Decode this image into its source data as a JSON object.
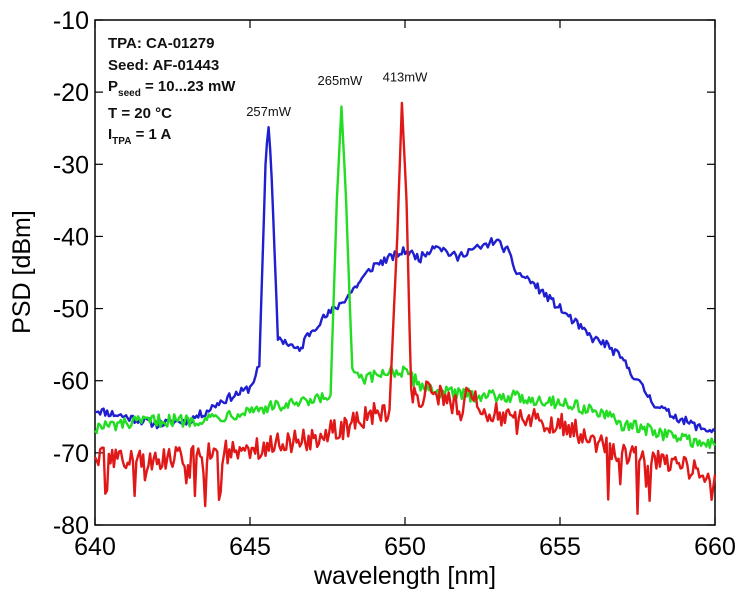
{
  "chart_data": {
    "type": "line",
    "xlabel": "wavelength [nm]",
    "ylabel": "PSD [dBm]",
    "xlim": [
      640,
      660
    ],
    "ylim": [
      -80,
      -10
    ],
    "xticks": [
      "640",
      "645",
      "650",
      "655",
      "660"
    ],
    "yticks": [
      "-10",
      "-20",
      "-30",
      "-40",
      "-50",
      "-60",
      "-70",
      "-80"
    ],
    "grid": false,
    "annotations": {
      "line1": "TPA: CA-01279",
      "line2": "Seed: AF-01443",
      "line3_main": "P",
      "line3_sub": "seed",
      "line3_rest": " = 10...23 mW",
      "line4": "T = 20 °C",
      "line5_main": "I",
      "line5_sub": "TPA",
      "line5_rest": " = 1 A"
    },
    "series": [
      {
        "color": "#1f1fd0",
        "peak_label": "257mW",
        "label_at": [
          645.6,
          -23.3
        ],
        "x": [
          640,
          641,
          642,
          643,
          643.5,
          644,
          644.5,
          645,
          645.3,
          645.5,
          645.6,
          645.7,
          645.9,
          646.3,
          646.6,
          646.8,
          647.2,
          648,
          648.5,
          649,
          649.5,
          650,
          650.5,
          651,
          651.3,
          651.7,
          652,
          652.5,
          652.9,
          653.3,
          653.6,
          654,
          654.5,
          655,
          655.5,
          656,
          656.5,
          657,
          657.5,
          658,
          658.5,
          659,
          659.5,
          660
        ],
        "y": [
          -64,
          -65,
          -66,
          -65.5,
          -64.5,
          -63,
          -62,
          -61,
          -58,
          -30,
          -25,
          -32,
          -54,
          -55,
          -56,
          -54,
          -52,
          -49,
          -46.5,
          -44,
          -43,
          -42,
          -43,
          -41,
          -42,
          -43,
          -42,
          -41.5,
          -40.5,
          -42,
          -45,
          -46,
          -48,
          -50,
          -52,
          -54,
          -55,
          -57,
          -60,
          -63,
          -64.5,
          -65.5,
          -66.5,
          -67
        ]
      },
      {
        "color": "#22dd22",
        "peak_label": "265mW",
        "label_at": [
          647.9,
          -19
        ],
        "x": [
          640,
          641,
          642,
          643,
          644,
          645,
          646,
          647,
          647.6,
          647.8,
          647.95,
          648.1,
          648.3,
          648.7,
          649,
          649.5,
          650,
          650.5,
          651,
          652,
          653,
          654,
          655,
          656,
          657,
          658,
          659,
          660
        ],
        "y": [
          -66.5,
          -66,
          -65.5,
          -65.5,
          -65,
          -64,
          -63.5,
          -63,
          -62,
          -35,
          -22,
          -35,
          -59,
          -60,
          -59.5,
          -58.5,
          -59,
          -60.5,
          -61.5,
          -62,
          -62,
          -62.5,
          -63,
          -64,
          -66,
          -67,
          -68,
          -69
        ]
      },
      {
        "color": "#e01818",
        "peak_label": "413mW",
        "label_at": [
          650,
          -18.5
        ],
        "x": [
          640,
          641,
          642,
          643,
          644,
          645,
          646,
          647,
          648,
          648.5,
          649,
          649.5,
          649.75,
          649.9,
          650.05,
          650.2,
          650.4,
          650.8,
          651.3,
          651.8,
          652.1,
          652.5,
          653,
          653.5,
          654,
          654.5,
          655,
          656,
          657,
          658,
          659,
          660
        ],
        "y": [
          -70,
          -71,
          -71,
          -70.5,
          -70,
          -69.5,
          -68.5,
          -68,
          -66.5,
          -65.5,
          -64.5,
          -64,
          -40,
          -21.5,
          -35,
          -62,
          -63,
          -61,
          -62.5,
          -64,
          -61.5,
          -64,
          -64.5,
          -66,
          -65,
          -65.5,
          -66,
          -68,
          -70,
          -70.5,
          -72,
          -73
        ]
      }
    ]
  }
}
